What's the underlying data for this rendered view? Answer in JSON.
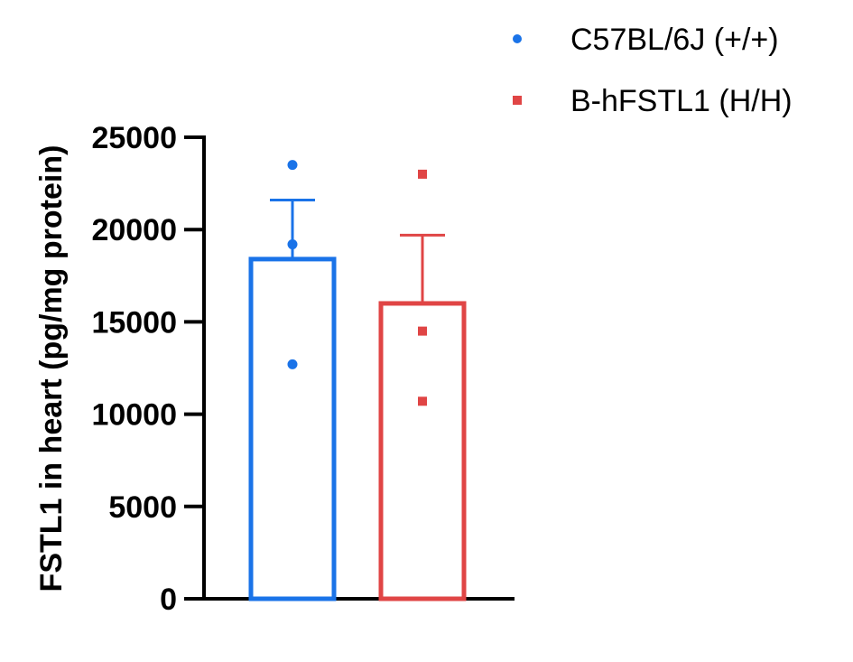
{
  "chart_data": {
    "type": "bar",
    "title": "",
    "xlabel": "",
    "ylabel": "FSTL1 in heart (pg/mg  protein)",
    "ylim": [
      0,
      25000
    ],
    "yticks": [
      0,
      5000,
      10000,
      15000,
      20000,
      25000
    ],
    "ytick_labels": [
      "0",
      "5000",
      "10000",
      "15000",
      "20000",
      "25000"
    ],
    "grid": false,
    "legend_position": "top-right",
    "series": [
      {
        "name": "C57BL/6J (+/+)",
        "color": "#1a73e8",
        "marker": "circle",
        "mean": 18400,
        "error_upper": 21600,
        "points": [
          23500,
          19200,
          12700
        ]
      },
      {
        "name": "B-hFSTL1 (H/H)",
        "color": "#e04545",
        "marker": "square",
        "mean": 16000,
        "error_upper": 19700,
        "points": [
          23000,
          14500,
          10700
        ]
      }
    ]
  }
}
